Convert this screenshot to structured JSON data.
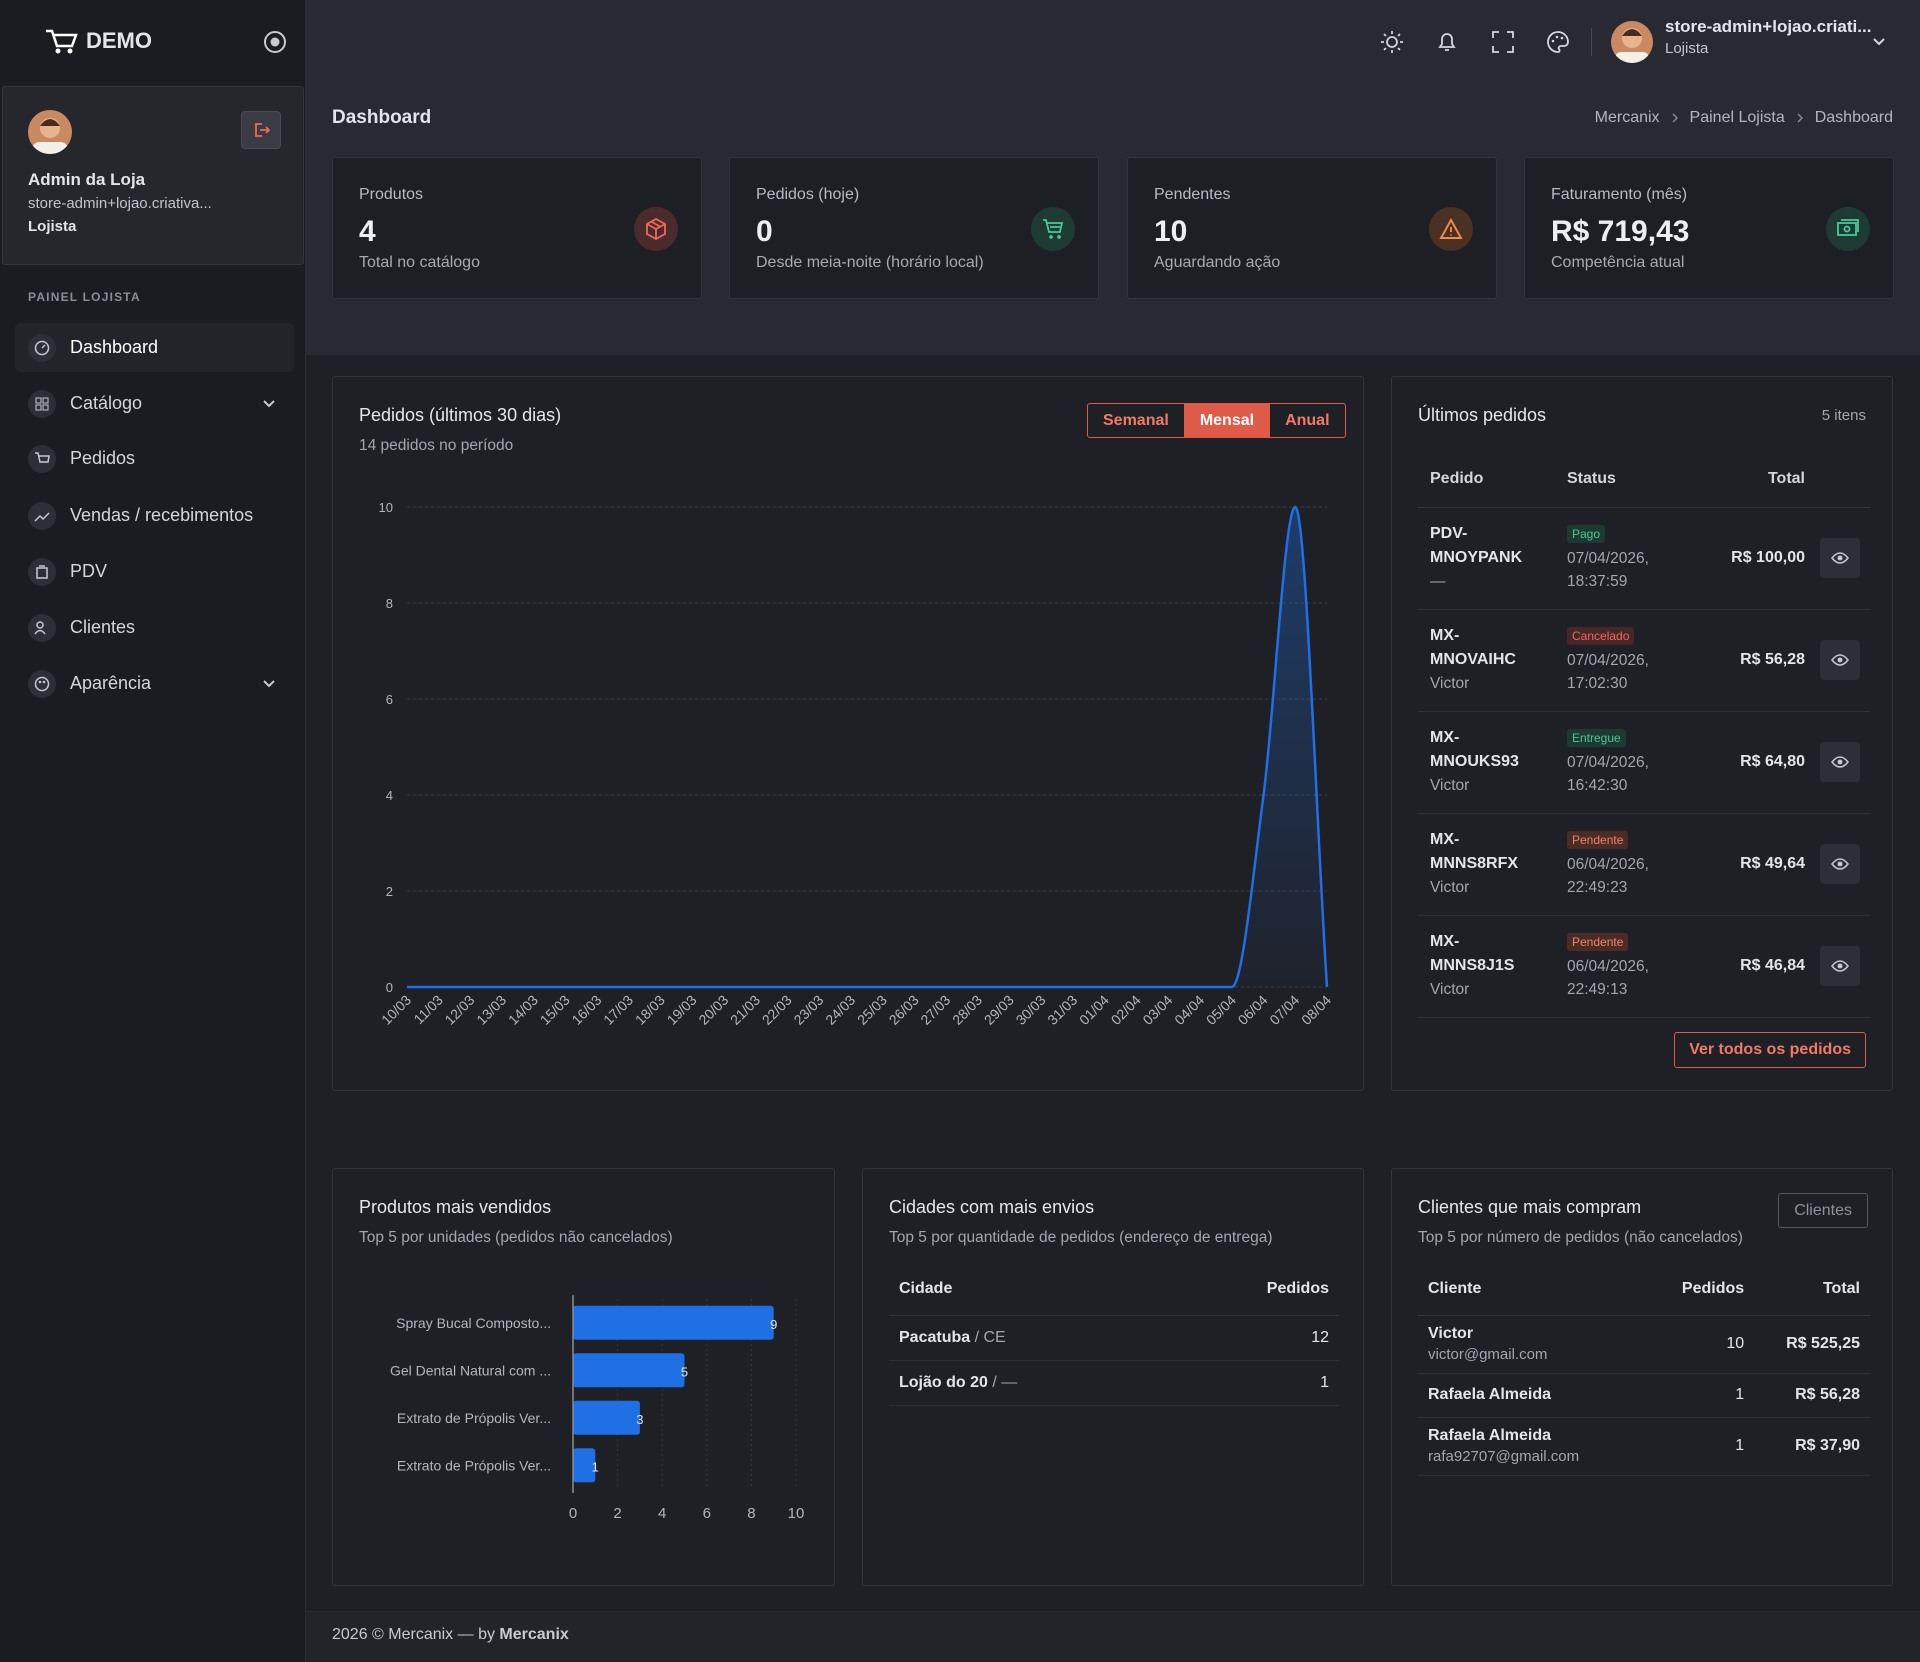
{
  "brand": {
    "name": "DEMO"
  },
  "sidebar": {
    "user": {
      "name": "Admin da Loja",
      "email": "store-admin+lojao.criativa...",
      "role": "Lojista"
    },
    "section": "PAINEL LOJISTA",
    "menu": [
      "Dashboard",
      "Catálogo",
      "Pedidos",
      "Vendas / recebimentos",
      "PDV",
      "Clientes",
      "Aparência"
    ]
  },
  "topbar": {
    "user": "store-admin+lojao.criati...",
    "role": "Lojista"
  },
  "page": {
    "title": "Dashboard",
    "breadcrumb": [
      "Mercanix",
      "Painel Lojista",
      "Dashboard"
    ]
  },
  "stats": [
    {
      "label": "Produtos",
      "value": 4,
      "caption": "Total no catálogo"
    },
    {
      "label": "Pedidos (hoje)",
      "value": 0,
      "caption": "Desde meia-noite (horário local)"
    },
    {
      "label": "Pendentes",
      "value": 10,
      "caption": "Aguardando ação"
    },
    {
      "label": "Faturamento (mês)",
      "value": "R$ 719,43",
      "caption": "Competência atual"
    }
  ],
  "chart_data": [
    {
      "type": "line",
      "title": "Pedidos (últimos 30 dias)",
      "subtitle": "14 pedidos no período",
      "periods": [
        "Semanal",
        "Mensal",
        "Anual"
      ],
      "active_period": 1,
      "categories": [
        "10/03",
        "11/03",
        "12/03",
        "13/03",
        "14/03",
        "15/03",
        "16/03",
        "17/03",
        "18/03",
        "19/03",
        "20/03",
        "21/03",
        "22/03",
        "23/03",
        "24/03",
        "25/03",
        "26/03",
        "27/03",
        "28/03",
        "29/03",
        "30/03",
        "31/03",
        "01/04",
        "02/04",
        "03/04",
        "04/04",
        "05/04",
        "06/04",
        "07/04",
        "08/04"
      ],
      "values": [
        0,
        0,
        0,
        0,
        0,
        0,
        0,
        0,
        0,
        0,
        0,
        0,
        0,
        0,
        0,
        0,
        0,
        0,
        0,
        0,
        0,
        0,
        0,
        0,
        0,
        0,
        0,
        4,
        10,
        0
      ],
      "color": "#1f6fe5",
      "ylim": [
        0,
        10
      ],
      "yticks": [
        0,
        2,
        4,
        6,
        8,
        10
      ],
      "grid": true
    },
    {
      "type": "bar",
      "orientation": "horizontal",
      "title": "Produtos mais vendidos",
      "subtitle": "Top 5 por unidades (pedidos não cancelados)",
      "categories": [
        "Spray Bucal Composto...",
        "Gel Dental Natural com ...",
        "Extrato de Própolis Ver...",
        "Extrato de Própolis Ver..."
      ],
      "values": [
        9,
        5,
        3,
        1
      ],
      "color": "#1f6fe5",
      "xlim": [
        0,
        10
      ],
      "xticks": [
        0,
        2,
        4,
        6,
        8,
        10
      ],
      "grid": true
    }
  ],
  "recent_orders": {
    "title": "Últimos pedidos",
    "count": "5 itens",
    "columns": [
      "Pedido",
      "Status",
      "Total"
    ],
    "rows": [
      {
        "id": "PDV-MNOYPANK",
        "customer": "—",
        "status": "Pago",
        "badge_color": "#4cc79a",
        "badge_bg": "#1c3a30",
        "date": "07/04/2026, 18:37:59",
        "total": "R$ 100,00"
      },
      {
        "id": "MX-MNOVAIHC",
        "customer": "Victor",
        "status": "Cancelado",
        "badge_color": "#ee6a5b",
        "badge_bg": "#47262a",
        "date": "07/04/2026, 17:02:30",
        "total": "R$ 56,28"
      },
      {
        "id": "MX-MNOUKS93",
        "customer": "Victor",
        "status": "Entregue",
        "badge_color": "#4cc79a",
        "badge_bg": "#1c3a30",
        "date": "07/04/2026, 16:42:30",
        "total": "R$ 64,80"
      },
      {
        "id": "MX-MNNS8RFX",
        "customer": "Victor",
        "status": "Pendente",
        "badge_color": "#f4826a",
        "badge_bg": "#4a2b25",
        "date": "06/04/2026, 22:49:23",
        "total": "R$ 49,64"
      },
      {
        "id": "MX-MNNS8J1S",
        "customer": "Victor",
        "status": "Pendente",
        "badge_color": "#f4826a",
        "badge_bg": "#4a2b25",
        "date": "06/04/2026, 22:49:13",
        "total": "R$ 46,84"
      }
    ],
    "button": "Ver todos os pedidos"
  },
  "cities": {
    "title": "Cidades com mais envios",
    "subtitle": "Top 5 por quantidade de pedidos (endereço de entrega)",
    "columns": [
      "Cidade",
      "Pedidos"
    ],
    "rows": [
      {
        "city": "Pacatuba",
        "state": "/ CE",
        "orders": 12
      },
      {
        "city": "Lojão do 20",
        "state": "/ —",
        "orders": 1
      }
    ]
  },
  "customers": {
    "title": "Clientes que mais compram",
    "subtitle": "Top 5 por número de pedidos (não cancelados)",
    "button": "Clientes",
    "columns": [
      "Cliente",
      "Pedidos",
      "Total"
    ],
    "rows": [
      {
        "name": "Victor",
        "email": "victor@gmail.com",
        "orders": 10,
        "total": "R$ 525,25"
      },
      {
        "name": "Rafaela Almeida",
        "orders": 1,
        "total": "R$ 56,28"
      },
      {
        "name": "Rafaela Almeida",
        "email": "rafa92707@gmail.com",
        "orders": 1,
        "total": "R$ 37,90"
      }
    ]
  },
  "footer": {
    "text": "2026 © Mercanix — by",
    "brand": "Mercanix"
  }
}
